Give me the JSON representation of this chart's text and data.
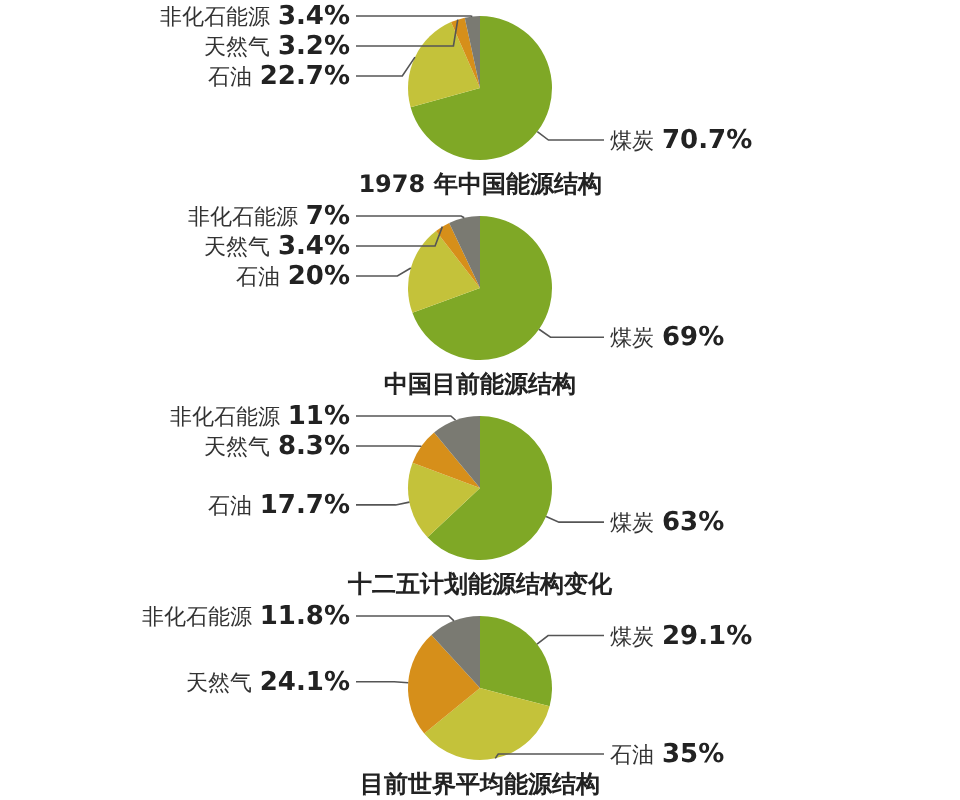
{
  "chart_data": [
    {
      "type": "pie",
      "title": "1978 年中国能源结构",
      "categories": [
        "煤炭",
        "石油",
        "天然气",
        "非化石能源"
      ],
      "values": [
        70.7,
        22.7,
        3.2,
        3.4
      ],
      "value_labels": [
        "70.7%",
        "22.7%",
        "3.2%",
        "3.4%"
      ],
      "colors": [
        "#7fa826",
        "#c4c23a",
        "#d68f1a",
        "#7a7a72"
      ]
    },
    {
      "type": "pie",
      "title": "中国目前能源结构",
      "categories": [
        "煤炭",
        "石油",
        "天然气",
        "非化石能源"
      ],
      "values": [
        69,
        20,
        3.4,
        7
      ],
      "value_labels": [
        "69%",
        "20%",
        "3.4%",
        "7%"
      ],
      "colors": [
        "#7fa826",
        "#c4c23a",
        "#d68f1a",
        "#7a7a72"
      ]
    },
    {
      "type": "pie",
      "title": "十二五计划能源结构变化",
      "categories": [
        "煤炭",
        "石油",
        "天然气",
        "非化石能源"
      ],
      "values": [
        63,
        17.7,
        8.3,
        11
      ],
      "value_labels": [
        "63%",
        "17.7%",
        "8.3%",
        "11%"
      ],
      "colors": [
        "#7fa826",
        "#c4c23a",
        "#d68f1a",
        "#7a7a72"
      ]
    },
    {
      "type": "pie",
      "title": "目前世界平均能源结构",
      "categories": [
        "煤炭",
        "石油",
        "天然气",
        "非化石能源"
      ],
      "values": [
        29.1,
        35,
        24.1,
        11.8
      ],
      "value_labels": [
        "29.1%",
        "35%",
        "24.1%",
        "11.8%"
      ],
      "colors": [
        "#7fa826",
        "#c4c23a",
        "#d68f1a",
        "#7a7a72"
      ]
    }
  ]
}
